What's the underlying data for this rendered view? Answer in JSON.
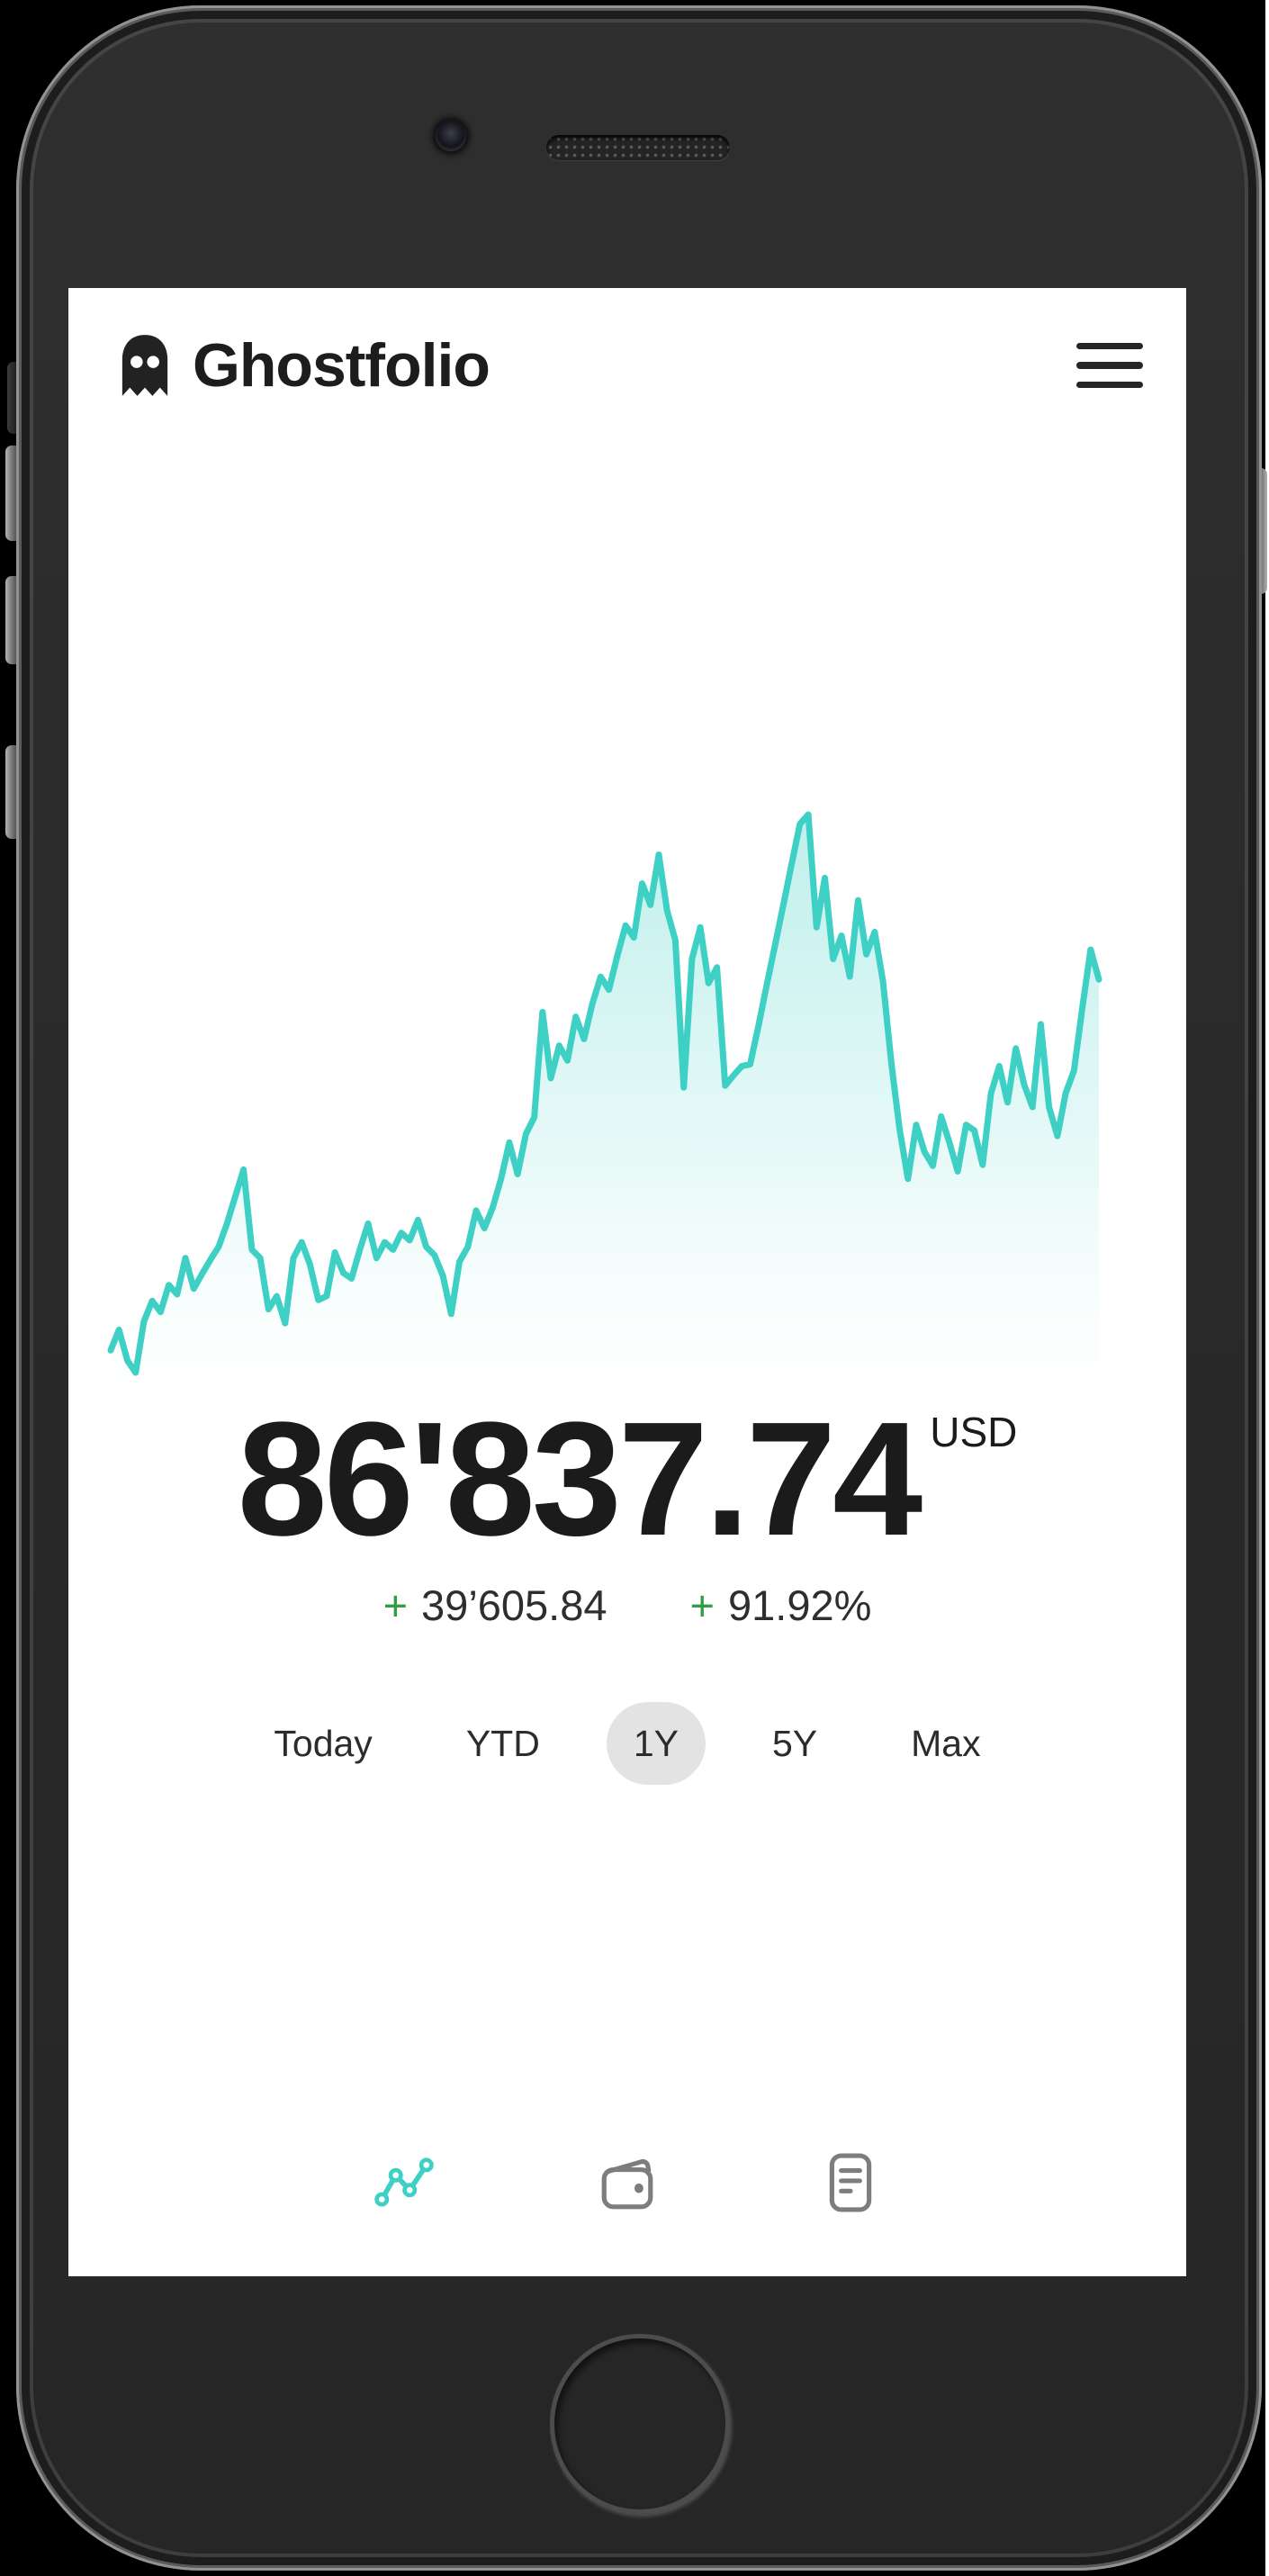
{
  "header": {
    "title": "Ghostfolio",
    "logo_icon": "ghost-logo-icon",
    "menu_icon": "hamburger-menu-icon"
  },
  "portfolio": {
    "total_value": "86'837.74",
    "currency": "USD",
    "change_sign": "+",
    "change_absolute": "39’605.84",
    "change_percent": "91.92%"
  },
  "range_selector": {
    "options": [
      {
        "label": "Today",
        "selected": false
      },
      {
        "label": "YTD",
        "selected": false
      },
      {
        "label": "1Y",
        "selected": true
      },
      {
        "label": "5Y",
        "selected": false
      },
      {
        "label": "Max",
        "selected": false
      }
    ]
  },
  "bottom_nav": {
    "items": [
      {
        "name": "performance",
        "icon": "line-chart-icon",
        "active": true
      },
      {
        "name": "holdings",
        "icon": "wallet-icon",
        "active": false
      },
      {
        "name": "activities",
        "icon": "reader-icon",
        "active": false
      }
    ]
  },
  "colors": {
    "accent_teal": "#3ed0c4",
    "positive_green": "#2f9e44",
    "selected_pill_gray": "#e3e3e3",
    "nav_inactive_gray": "#7d7d7d",
    "text_dark": "#1d1d1d"
  },
  "chart_data": {
    "type": "area",
    "title": "Portfolio performance (1Y)",
    "xlabel": "",
    "ylabel": "",
    "legend": false,
    "grid": false,
    "axes_hidden": true,
    "period": "1Y",
    "currency": "USD",
    "start_value_usd": 47231.9,
    "end_value_usd": 86837.74,
    "value_range": [
      44.8,
      104.7
    ],
    "units": "thousands USD (estimated from line position; no axes shown)",
    "line_color": "#3ed0c4",
    "fill_color_top": "rgba(62,208,196,0.33)",
    "fill_color_bottom": "rgba(62,208,196,0)",
    "values": [
      47.2,
      49.4,
      46.1,
      44.8,
      50.3,
      52.5,
      51.3,
      54.2,
      53.2,
      57.1,
      53.8,
      55.4,
      56.9,
      58.3,
      60.8,
      63.7,
      66.6,
      58.0,
      57.1,
      51.6,
      53.0,
      50.1,
      57.1,
      58.8,
      56.4,
      52.6,
      53.0,
      57.7,
      55.5,
      54.9,
      58.0,
      60.8,
      57.1,
      58.8,
      58.0,
      59.8,
      59.0,
      61.2,
      58.3,
      57.4,
      55.2,
      51.1,
      56.7,
      58.3,
      62.2,
      60.3,
      62.5,
      65.6,
      69.5,
      66.1,
      70.4,
      72.2,
      83.5,
      76.4,
      79.9,
      78.3,
      83.0,
      80.6,
      84.4,
      87.3,
      85.9,
      89.5,
      92.8,
      91.5,
      97.3,
      95.0,
      100.4,
      94.4,
      91.2,
      75.4,
      89.2,
      92.6,
      86.6,
      88.3,
      75.6,
      76.7,
      77.7,
      77.9,
      82.0,
      86.4,
      90.7,
      95.0,
      99.4,
      103.7,
      104.7,
      92.6,
      97.9,
      89.2,
      91.7,
      87.3,
      95.5,
      89.7,
      92.1,
      86.8,
      78.1,
      70.9,
      65.6,
      71.4,
      68.5,
      67.0,
      72.3,
      69.5,
      66.4,
      71.4,
      70.8,
      67.1,
      74.8,
      77.7,
      73.8,
      79.6,
      75.7,
      73.3,
      82.2,
      73.3,
      70.2,
      74.8,
      77.2,
      83.9,
      90.2,
      87.0
    ]
  }
}
